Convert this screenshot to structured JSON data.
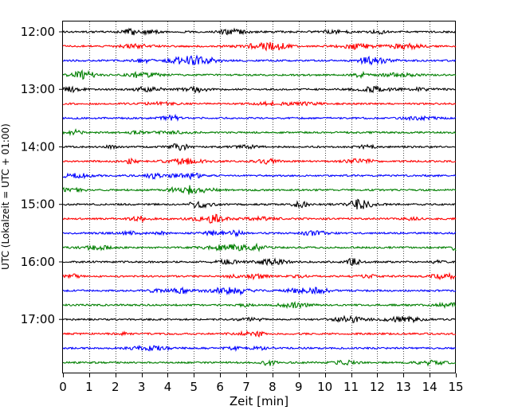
{
  "chart_data": {
    "type": "line",
    "title": "",
    "xlabel": "Zeit  [min]",
    "ylabel": "UTC (Lokalzeit = UTC + 01:00)",
    "xlim": [
      0,
      15
    ],
    "x_ticks": [
      "0",
      "1",
      "2",
      "3",
      "4",
      "5",
      "6",
      "7",
      "8",
      "9",
      "10",
      "11",
      "12",
      "13",
      "14",
      "15"
    ],
    "y_ticks": [
      {
        "label": "12:00",
        "minutes": 0
      },
      {
        "label": "13:00",
        "minutes": 60
      },
      {
        "label": "14:00",
        "minutes": 120
      },
      {
        "label": "15:00",
        "minutes": 180
      },
      {
        "label": "16:00",
        "minutes": 240
      },
      {
        "label": "17:00",
        "minutes": 300
      }
    ],
    "trace_start": "12:00",
    "trace_end": "17:45",
    "trace_interval_min": 15,
    "trace_colors": [
      "#000000",
      "#ff0000",
      "#0000ff",
      "#007f00"
    ],
    "grid": "vertical dotted at each minute",
    "series_description_note": ""
  }
}
